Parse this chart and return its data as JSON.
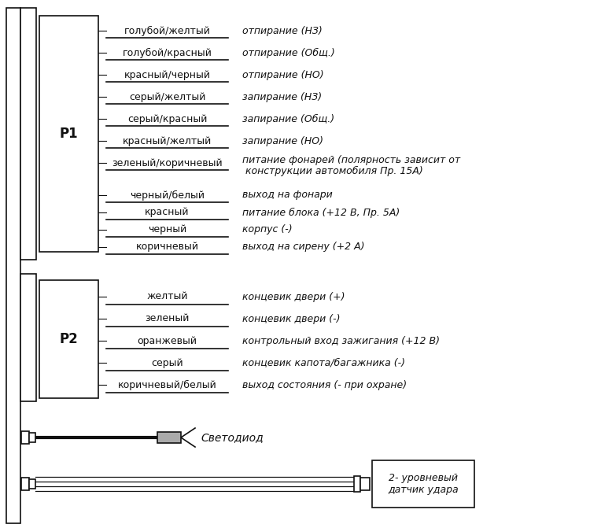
{
  "bg_color": "#ffffff",
  "p1_label": "P1",
  "p2_label": "P2",
  "p1_wires_group1": [
    [
      "голубой/желтый",
      "отпирание (НЗ)"
    ],
    [
      "голубой/красный",
      "отпирание (Общ.)"
    ],
    [
      "красный/черный",
      "отпирание (НО)"
    ],
    [
      "серый/желтый",
      "запирание (НЗ)"
    ],
    [
      "серый/красный",
      "запирание (Общ.)"
    ],
    [
      "красный/желтый",
      "запирание (НО)"
    ],
    [
      "зеленый/коричневый",
      "питание фонарей (полярность зависит от"
    ]
  ],
  "p1_desc7_line2": " конструкции автомобиля Пр. 15А)",
  "p1_wires_group2": [
    [
      "черный/белый",
      "выход на фонари"
    ],
    [
      "красный",
      "питание блока (+12 В, Пр. 5А)"
    ],
    [
      "черный",
      "корпус (-)"
    ],
    [
      "коричневый",
      "выход на сирену (+2 А)"
    ]
  ],
  "p2_wires": [
    [
      "желтый",
      "концевик двери (+)"
    ],
    [
      "зеленый",
      "концевик двери (-)"
    ],
    [
      "оранжевый",
      "контрольный вход зажигания (+12 В)"
    ],
    [
      "серый",
      "концевик капота/багажника (-)"
    ],
    [
      "коричневый/белый",
      "выход состояния (- при охране)"
    ]
  ],
  "svetodiod_label": "Светодиод",
  "sensor_label": "2- уровневый\nдатчик удара",
  "font_size_wire": 9,
  "font_size_desc": 9
}
